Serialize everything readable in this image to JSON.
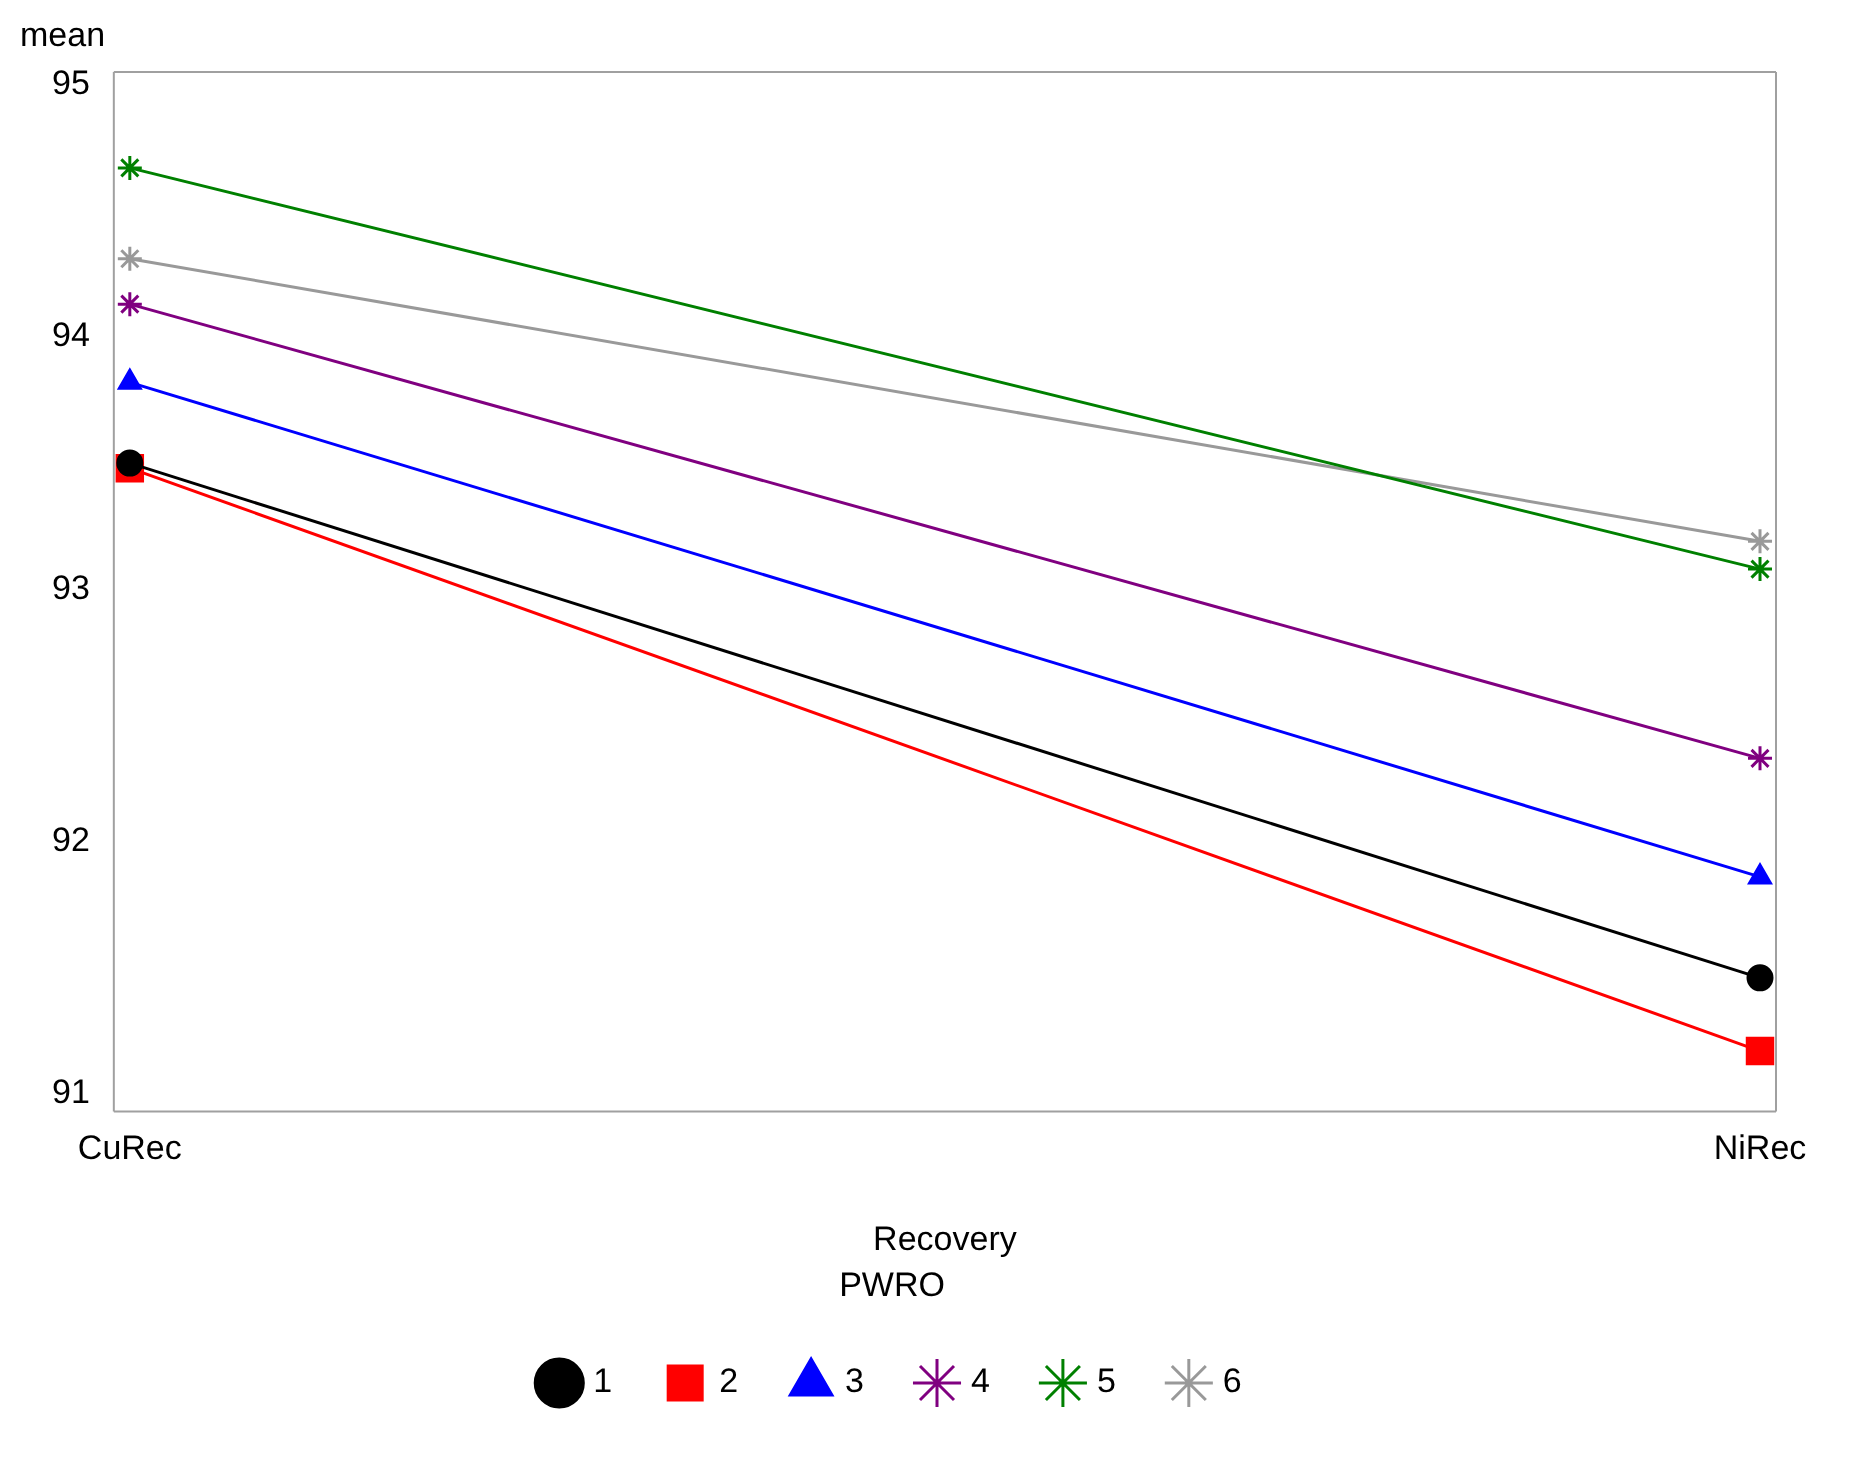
{
  "chart_data": {
    "type": "line",
    "xlabel": "Recovery",
    "ylabel": "mean",
    "legend_title": "PWRO",
    "categories": [
      "CuRec",
      "NiRec"
    ],
    "series": [
      {
        "name": "1",
        "color": "#000000",
        "marker": "circle",
        "values": [
          93.5,
          91.46
        ]
      },
      {
        "name": "2",
        "color": "#ff0000",
        "marker": "square",
        "values": [
          93.48,
          91.17
        ]
      },
      {
        "name": "3",
        "color": "#0000ff",
        "marker": "triangle",
        "values": [
          93.82,
          91.86
        ]
      },
      {
        "name": "4",
        "color": "#800080",
        "marker": "cross",
        "values": [
          94.13,
          92.33
        ]
      },
      {
        "name": "5",
        "color": "#008000",
        "marker": "cross",
        "values": [
          94.67,
          93.08
        ]
      },
      {
        "name": "6",
        "color": "#999999",
        "marker": "cross",
        "values": [
          94.31,
          93.19
        ]
      }
    ],
    "ylim": [
      90.93,
      95.05
    ],
    "yticks": [
      91,
      92,
      93,
      94,
      95
    ],
    "legend": "bottom",
    "line_style": "solid"
  }
}
